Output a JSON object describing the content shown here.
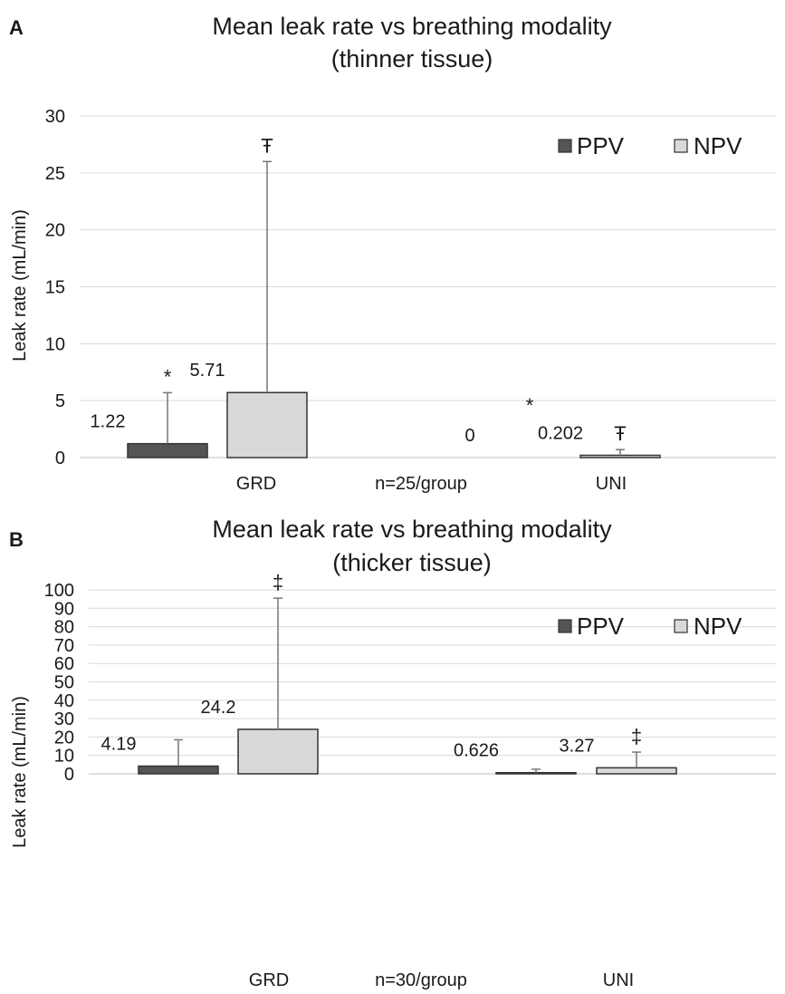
{
  "chart_data": [
    {
      "type": "bar",
      "panel": "A",
      "title": "Mean leak rate vs breathing modality",
      "subtitle": "(thinner tissue)",
      "ylabel": "Leak rate (mL/min)",
      "xlabel": "",
      "ylim": [
        0,
        30
      ],
      "yticks": [
        0,
        5,
        10,
        15,
        20,
        25,
        30
      ],
      "grid": true,
      "legend_position": "top-right",
      "categories": [
        "GRD",
        "UNI"
      ],
      "center_note": "n=25/group",
      "series": [
        {
          "name": "PPV",
          "color": "#555555",
          "values": [
            1.22,
            0
          ],
          "error_upper": [
            5.7,
            0
          ],
          "labels": [
            "1.22",
            "0"
          ],
          "markers": [
            "*",
            "*"
          ]
        },
        {
          "name": "NPV",
          "color": "#d9d9d9",
          "values": [
            5.71,
            0.202
          ],
          "error_upper": [
            26,
            0.7
          ],
          "labels": [
            "5.71",
            "0.202"
          ],
          "markers": [
            "Ŧ",
            "Ŧ"
          ]
        }
      ]
    },
    {
      "type": "bar",
      "panel": "B",
      "title": "Mean leak rate vs breathing modality",
      "subtitle": "(thicker tissue)",
      "ylabel": "Leak rate (mL/min)",
      "xlabel": "",
      "ylim": [
        0,
        100
      ],
      "yticks": [
        0,
        10,
        20,
        30,
        40,
        50,
        60,
        70,
        80,
        90,
        100
      ],
      "grid": true,
      "legend_position": "top-right",
      "categories": [
        "GRD",
        "UNI"
      ],
      "center_note": "n=30/group",
      "series": [
        {
          "name": "PPV",
          "color": "#555555",
          "values": [
            4.19,
            0.626
          ],
          "error_upper": [
            18.5,
            2.5
          ],
          "labels": [
            "4.19",
            "0.626"
          ],
          "markers": [
            "",
            ""
          ]
        },
        {
          "name": "NPV",
          "color": "#d9d9d9",
          "values": [
            24.2,
            3.27
          ],
          "error_upper": [
            95.5,
            11.8
          ],
          "labels": [
            "24.2",
            "3.27"
          ],
          "markers": [
            "‡",
            "‡"
          ]
        }
      ]
    }
  ]
}
